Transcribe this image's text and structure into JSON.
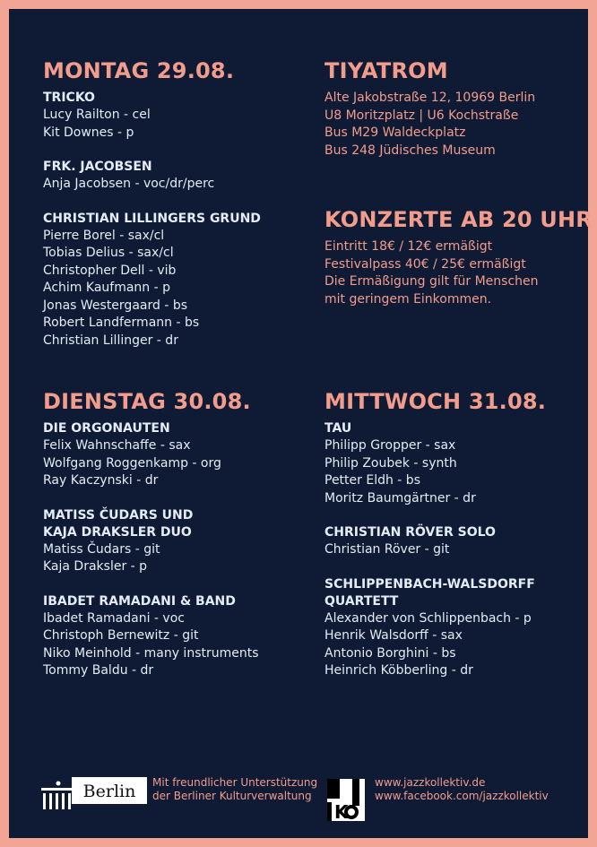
{
  "colors": {
    "background": "#0f1a35",
    "frame": "#f2a595",
    "accent": "#f29d8c",
    "text": "#e4ecf5"
  },
  "monday": {
    "title": "MONTAG 29.08.",
    "bands": [
      {
        "name": "TRICKO",
        "members": [
          "Lucy Railton - cel",
          "Kit Downes - p"
        ]
      },
      {
        "name": "FRK. JACOBSEN",
        "members": [
          "Anja Jacobsen -  voc/dr/perc"
        ]
      },
      {
        "name": "CHRISTIAN LILLINGERS GRUND",
        "members": [
          "Pierre Borel - sax/cl",
          "Tobias Delius - sax/cl",
          "Christopher Dell - vib",
          "Achim Kaufmann - p",
          "Jonas Westergaard - bs",
          "Robert Landfermann - bs",
          "Christian Lillinger - dr"
        ]
      }
    ]
  },
  "venue": {
    "title": "TIYATROM",
    "lines": [
      "Alte Jakobstraße 12, 10969 Berlin",
      "U8 Moritzplatz | U6 Kochstraße",
      "Bus M29 Waldeckplatz",
      "Bus 248 Jüdisches Museum"
    ]
  },
  "prices": {
    "title": "KONZERTE AB 20 UHR",
    "lines": [
      "Eintritt 18€ / 12€ ermäßigt",
      "Festivalpass 40€ / 25€ ermäßigt",
      "Die Ermäßigung gilt für Menschen",
      "mit geringem Einkommen."
    ]
  },
  "tuesday": {
    "title": "DIENSTAG 30.08.",
    "bands": [
      {
        "name": "DIE ORGONAUTEN",
        "members": [
          "Felix Wahnschaffe - sax",
          "Wolfgang Roggenkamp - org",
          "Ray Kaczynski - dr"
        ]
      },
      {
        "name": [
          "MATISS ČUDARS UND",
          "KAJA DRAKSLER DUO"
        ],
        "members": [
          "Matiss Čudars - git",
          "Kaja Draksler - p"
        ]
      },
      {
        "name": "IBADET RAMADANI & BAND",
        "members": [
          "Ibadet Ramadani - voc",
          "Christoph Bernewitz - git",
          "Niko Meinhold - many instruments",
          "Tommy Baldu - dr"
        ]
      }
    ]
  },
  "wednesday": {
    "title": "MITTWOCH 31.08.",
    "bands": [
      {
        "name": "TAU",
        "members": [
          "Philipp Gropper - sax",
          "Philip Zoubek - synth",
          "Petter Eldh - bs",
          "Moritz Baumgärtner - dr"
        ]
      },
      {
        "name": "CHRISTIAN RÖVER SOLO",
        "members": [
          "Christian Röver - git"
        ]
      },
      {
        "name": [
          "SCHLIPPENBACH-WALSDORFF",
          "QUARTETT"
        ],
        "members": [
          "Alexander von Schlippenbach - p",
          "Henrik Walsdorff - sax",
          "Antonio Borghini - bs",
          "Heinrich Köbberling - dr"
        ]
      }
    ]
  },
  "footer": {
    "berlin_logo_text": "Berlin",
    "support": [
      "Mit freundlicher Unterstützung",
      "der Berliner Kulturverwaltung"
    ],
    "jazzkollektiv_logo_text": "JAZZ KOLLEKTIV",
    "links": [
      "www.jazzkollektiv.de",
      "www.facebook.com/jazzkollektiv"
    ]
  }
}
